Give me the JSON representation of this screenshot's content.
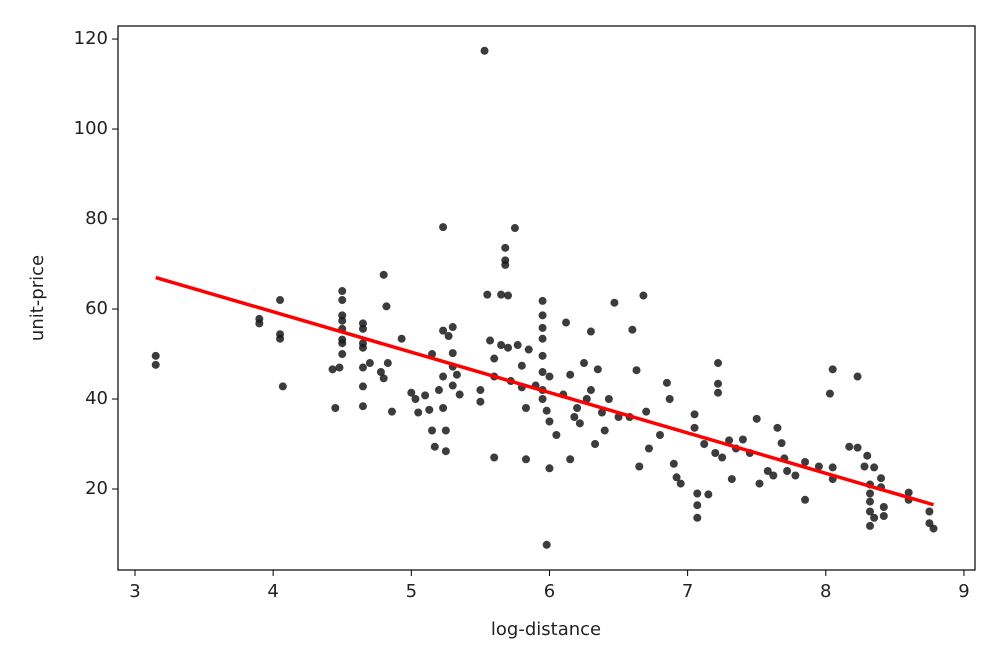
{
  "chart_data": {
    "type": "scatter",
    "xlabel": "log-distance",
    "ylabel": "unit-price",
    "xlim": [
      2.877,
      9.08
    ],
    "ylim": [
      2.0,
      122.9
    ],
    "xticks": [
      3,
      4,
      5,
      6,
      7,
      8,
      9
    ],
    "yticks": [
      20,
      40,
      60,
      80,
      100,
      120
    ],
    "color": "#1a1a1a",
    "x": [
      3.15,
      3.15,
      3.9,
      3.9,
      4.05,
      4.05,
      4.05,
      4.07,
      4.43,
      4.45,
      4.48,
      4.5,
      4.5,
      4.5,
      4.5,
      4.5,
      4.5,
      4.5,
      4.5,
      4.65,
      4.65,
      4.65,
      4.65,
      4.65,
      4.65,
      4.65,
      4.7,
      4.78,
      4.8,
      4.8,
      4.82,
      4.83,
      4.86,
      4.93,
      5,
      5.03,
      5.05,
      5.1,
      5.13,
      5.15,
      5.15,
      5.17,
      5.2,
      5.23,
      5.23,
      5.23,
      5.23,
      5.25,
      5.25,
      5.27,
      5.3,
      5.3,
      5.3,
      5.3,
      5.33,
      5.35,
      5.5,
      5.5,
      5.53,
      5.55,
      5.57,
      5.6,
      5.6,
      5.6,
      5.65,
      5.65,
      5.68,
      5.68,
      5.68,
      5.7,
      5.7,
      5.72,
      5.75,
      5.77,
      5.8,
      5.8,
      5.83,
      5.83,
      5.85,
      5.9,
      5.95,
      5.95,
      5.95,
      5.95,
      5.95,
      5.95,
      5.95,
      5.95,
      5.98,
      5.98,
      6,
      6,
      6,
      6.05,
      6.1,
      6.12,
      6.15,
      6.15,
      6.18,
      6.2,
      6.22,
      6.25,
      6.27,
      6.3,
      6.3,
      6.33,
      6.35,
      6.38,
      6.4,
      6.43,
      6.47,
      6.5,
      6.58,
      6.6,
      6.63,
      6.65,
      6.68,
      6.7,
      6.72,
      6.8,
      6.85,
      6.87,
      6.9,
      6.92,
      6.95,
      7.05,
      7.05,
      7.07,
      7.07,
      7.07,
      7.12,
      7.15,
      7.2,
      7.22,
      7.22,
      7.22,
      7.25,
      7.3,
      7.32,
      7.35,
      7.4,
      7.45,
      7.5,
      7.52,
      7.58,
      7.62,
      7.65,
      7.68,
      7.7,
      7.72,
      7.78,
      7.85,
      7.85,
      7.95,
      8.03,
      8.05,
      8.05,
      8.05,
      8.17,
      8.23,
      8.23,
      8.28,
      8.3,
      8.32,
      8.32,
      8.32,
      8.32,
      8.32,
      8.35,
      8.35,
      8.4,
      8.4,
      8.42,
      8.42,
      8.6,
      8.6,
      8.75,
      8.75,
      8.78
    ],
    "values": [
      49.6,
      47.6,
      57.8,
      56.8,
      62,
      54.4,
      53.4,
      42.8,
      46.6,
      38,
      47,
      64,
      62,
      58.6,
      57.4,
      55.6,
      53.2,
      52.4,
      50,
      56.8,
      55.6,
      52.4,
      51.4,
      47,
      42.8,
      38.4,
      48,
      46,
      67.6,
      44.6,
      60.6,
      48,
      37.2,
      53.4,
      41.4,
      40,
      37,
      40.8,
      37.6,
      50,
      33,
      29.4,
      42,
      78.2,
      55.2,
      45,
      38,
      33,
      28.4,
      54,
      56,
      50.2,
      47.2,
      43,
      45.4,
      41,
      42,
      39.4,
      117.4,
      63.2,
      53,
      49,
      45,
      27,
      63.2,
      52,
      73.6,
      70.8,
      69.8,
      63,
      51.4,
      44,
      78,
      52,
      47.4,
      42.6,
      38,
      26.6,
      51,
      43,
      61.8,
      58.6,
      55.8,
      53.4,
      49.6,
      46,
      42,
      40,
      37.4,
      7.6,
      24.6,
      45,
      35,
      32,
      41,
      57,
      45.4,
      26.6,
      36,
      38,
      34.6,
      48,
      40,
      55,
      42,
      30,
      46.6,
      37,
      33,
      40,
      61.4,
      36,
      36,
      55.4,
      46.4,
      25,
      63,
      37.2,
      29,
      32,
      43.6,
      40,
      25.6,
      22.6,
      21.2,
      36.6,
      33.6,
      19,
      16.4,
      13.6,
      30,
      18.8,
      28,
      48,
      43.4,
      41.4,
      27,
      30.8,
      22.2,
      29,
      31,
      28,
      35.6,
      21.2,
      24,
      23,
      33.6,
      30.2,
      26.8,
      24,
      23,
      17.6,
      26,
      25,
      41.2,
      46.6,
      24.8,
      22.2,
      29.4,
      45,
      29.2,
      25,
      27.4,
      21,
      19,
      17.2,
      15,
      11.8,
      24.8,
      13.6,
      22.4,
      20.4,
      16,
      14,
      19.2,
      17.6,
      15,
      12.4,
      11.2
    ],
    "fit": {
      "color": "#ff0000",
      "x": [
        3.15,
        8.78
      ],
      "values": [
        67,
        16.5
      ]
    }
  }
}
